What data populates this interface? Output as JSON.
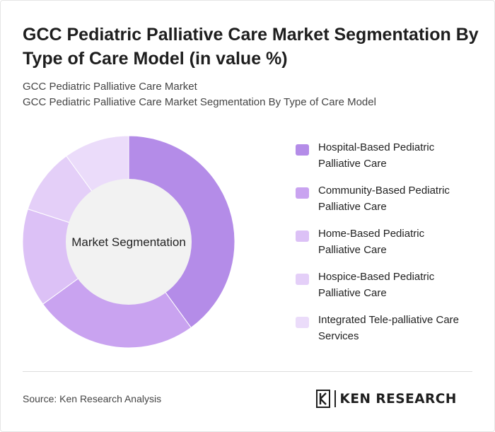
{
  "title": "GCC Pediatric Palliative Care Market Segmentation By Type of Care Model (in value %)",
  "subtitle": {
    "line1": "GCC Pediatric Palliative Care Market",
    "line2": "GCC Pediatric Palliative Care Market Segmentation By Type of Care Model"
  },
  "chart_data": {
    "type": "pie",
    "variant": "donut",
    "center_label": "Market Segmentation",
    "categories": [
      "Hospital-Based Pediatric Palliative Care",
      "Community-Based Pediatric Palliative Care",
      "Home-Based Pediatric Palliative Care",
      "Hospice-Based Pediatric Palliative Care",
      "Integrated Tele-palliative Care Services"
    ],
    "values": [
      40,
      25,
      15,
      10,
      10
    ],
    "colors": [
      "#b48ce8",
      "#c9a3f0",
      "#dcc1f6",
      "#e4cff8",
      "#ebdcfa"
    ],
    "legend_position": "right"
  },
  "legend": {
    "items": [
      {
        "line1": "Hospital-Based Pediatric",
        "line2": "Palliative Care"
      },
      {
        "line1": "Community-Based Pediatric",
        "line2": "Palliative Care"
      },
      {
        "line1": "Home-Based Pediatric",
        "line2": "Palliative Care"
      },
      {
        "line1": "Hospice-Based Pediatric",
        "line2": "Palliative Care"
      },
      {
        "line1": "Integrated Tele-palliative Care",
        "line2": "Services"
      }
    ]
  },
  "source": "Source: Ken Research Analysis",
  "logo": {
    "text": "KEN RESEARCH",
    "icon": "ken-research-logo-icon"
  }
}
